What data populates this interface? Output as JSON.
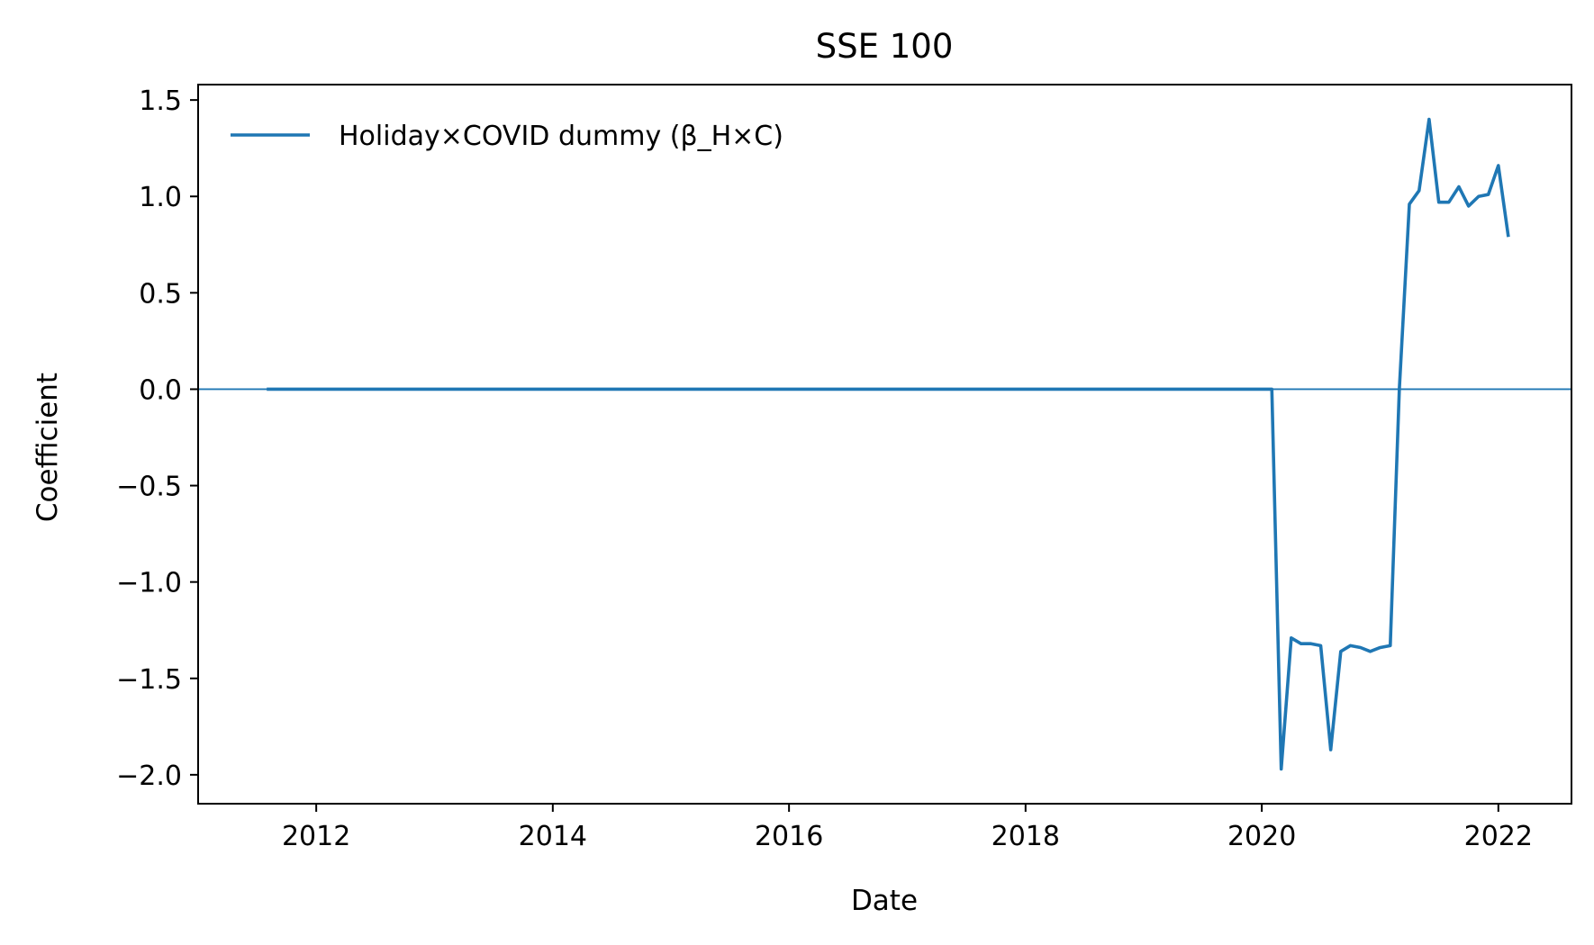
{
  "chart_data": {
    "type": "line",
    "title": "SSE 100",
    "xlabel": "Date",
    "ylabel": "Coefficient",
    "xlim": [
      "2011-01-01",
      "2022-08-15"
    ],
    "ylim": [
      -2.15,
      1.58
    ],
    "xticks": [
      {
        "date": "2012-01-01",
        "label": "2012"
      },
      {
        "date": "2014-01-01",
        "label": "2014"
      },
      {
        "date": "2016-01-01",
        "label": "2016"
      },
      {
        "date": "2018-01-01",
        "label": "2018"
      },
      {
        "date": "2020-01-01",
        "label": "2020"
      },
      {
        "date": "2022-01-01",
        "label": "2022"
      }
    ],
    "yticks": [
      {
        "value": 1.5,
        "label": "1.5"
      },
      {
        "value": 1.0,
        "label": "1.0"
      },
      {
        "value": 0.5,
        "label": "0.5"
      },
      {
        "value": 0.0,
        "label": "0.0"
      },
      {
        "value": -0.5,
        "label": "−0.5"
      },
      {
        "value": -1.0,
        "label": "−1.0"
      },
      {
        "value": -1.5,
        "label": "−1.5"
      },
      {
        "value": -2.0,
        "label": "−2.0"
      }
    ],
    "grid": false,
    "legend_position": "upper-left",
    "reference_line": {
      "y": 0,
      "color": "#1f77b4"
    },
    "series": [
      {
        "name": "Holiday×COVID dummy (β_H×C)",
        "color": "#1f77b4",
        "points": [
          {
            "x": "2011-08-01",
            "y": 0.0
          },
          {
            "x": "2012-06-01",
            "y": 0.0
          },
          {
            "x": "2014-01-01",
            "y": 0.0
          },
          {
            "x": "2016-01-01",
            "y": 0.0
          },
          {
            "x": "2018-01-01",
            "y": 0.0
          },
          {
            "x": "2019-06-01",
            "y": 0.0
          },
          {
            "x": "2020-02-01",
            "y": 0.0
          },
          {
            "x": "2020-03-01",
            "y": -1.97
          },
          {
            "x": "2020-04-01",
            "y": -1.29
          },
          {
            "x": "2020-05-01",
            "y": -1.32
          },
          {
            "x": "2020-06-01",
            "y": -1.32
          },
          {
            "x": "2020-07-01",
            "y": -1.33
          },
          {
            "x": "2020-08-01",
            "y": -1.87
          },
          {
            "x": "2020-09-01",
            "y": -1.36
          },
          {
            "x": "2020-10-01",
            "y": -1.33
          },
          {
            "x": "2020-11-01",
            "y": -1.34
          },
          {
            "x": "2020-12-01",
            "y": -1.36
          },
          {
            "x": "2021-01-01",
            "y": -1.34
          },
          {
            "x": "2021-02-01",
            "y": -1.33
          },
          {
            "x": "2021-03-01",
            "y": 0.0
          },
          {
            "x": "2021-04-01",
            "y": 0.96
          },
          {
            "x": "2021-05-01",
            "y": 1.03
          },
          {
            "x": "2021-06-01",
            "y": 1.4
          },
          {
            "x": "2021-07-01",
            "y": 0.97
          },
          {
            "x": "2021-08-01",
            "y": 0.97
          },
          {
            "x": "2021-09-01",
            "y": 1.05
          },
          {
            "x": "2021-10-01",
            "y": 0.95
          },
          {
            "x": "2021-11-01",
            "y": 1.0
          },
          {
            "x": "2021-12-01",
            "y": 1.01
          },
          {
            "x": "2022-01-01",
            "y": 1.16
          },
          {
            "x": "2022-02-01",
            "y": 0.79
          }
        ]
      }
    ]
  }
}
